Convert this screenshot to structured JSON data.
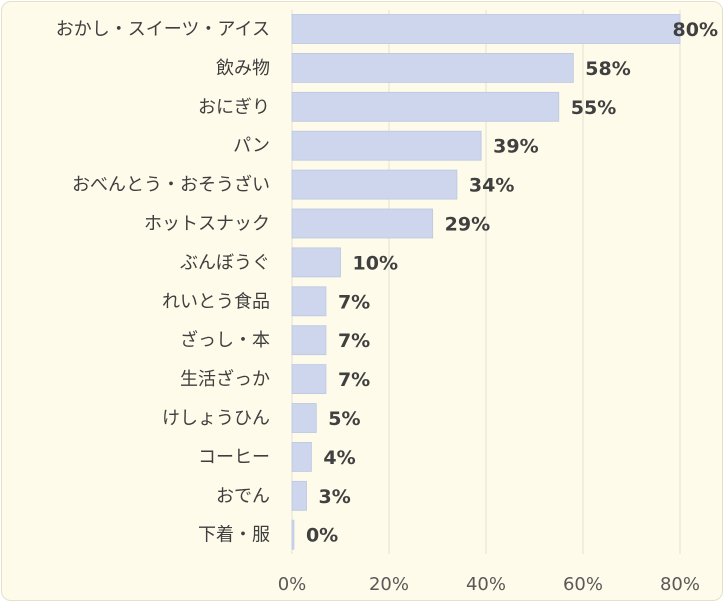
{
  "chart_data": {
    "type": "bar",
    "orientation": "horizontal",
    "categories": [
      "おかし・スイーツ・アイス",
      "飲み物",
      "おにぎり",
      "パン",
      "おべんとう・おそうざい",
      "ホットスナック",
      "ぶんぼうぐ",
      "れいとう食品",
      "ざっし・本",
      "生活ざっか",
      "けしょうひん",
      "コーヒー",
      "おでん",
      "下着・服"
    ],
    "values": [
      80,
      58,
      55,
      39,
      34,
      29,
      10,
      7,
      7,
      7,
      5,
      4,
      3,
      0.4
    ],
    "value_labels": [
      "80%",
      "58%",
      "55%",
      "39%",
      "34%",
      "29%",
      "10%",
      "7%",
      "7%",
      "7%",
      "5%",
      "4%",
      "3%",
      "0%"
    ],
    "xlim": [
      0,
      80
    ],
    "xticks": [
      0,
      20,
      40,
      60,
      80
    ],
    "xtick_labels": [
      "0%",
      "20%",
      "40%",
      "60%",
      "80%"
    ],
    "grid": "vertical",
    "colors": {
      "bar": "#cdd6ec",
      "bar_edge": "#bcc7e2",
      "grid": "#e3e0cf",
      "background": "#fefbea"
    }
  }
}
